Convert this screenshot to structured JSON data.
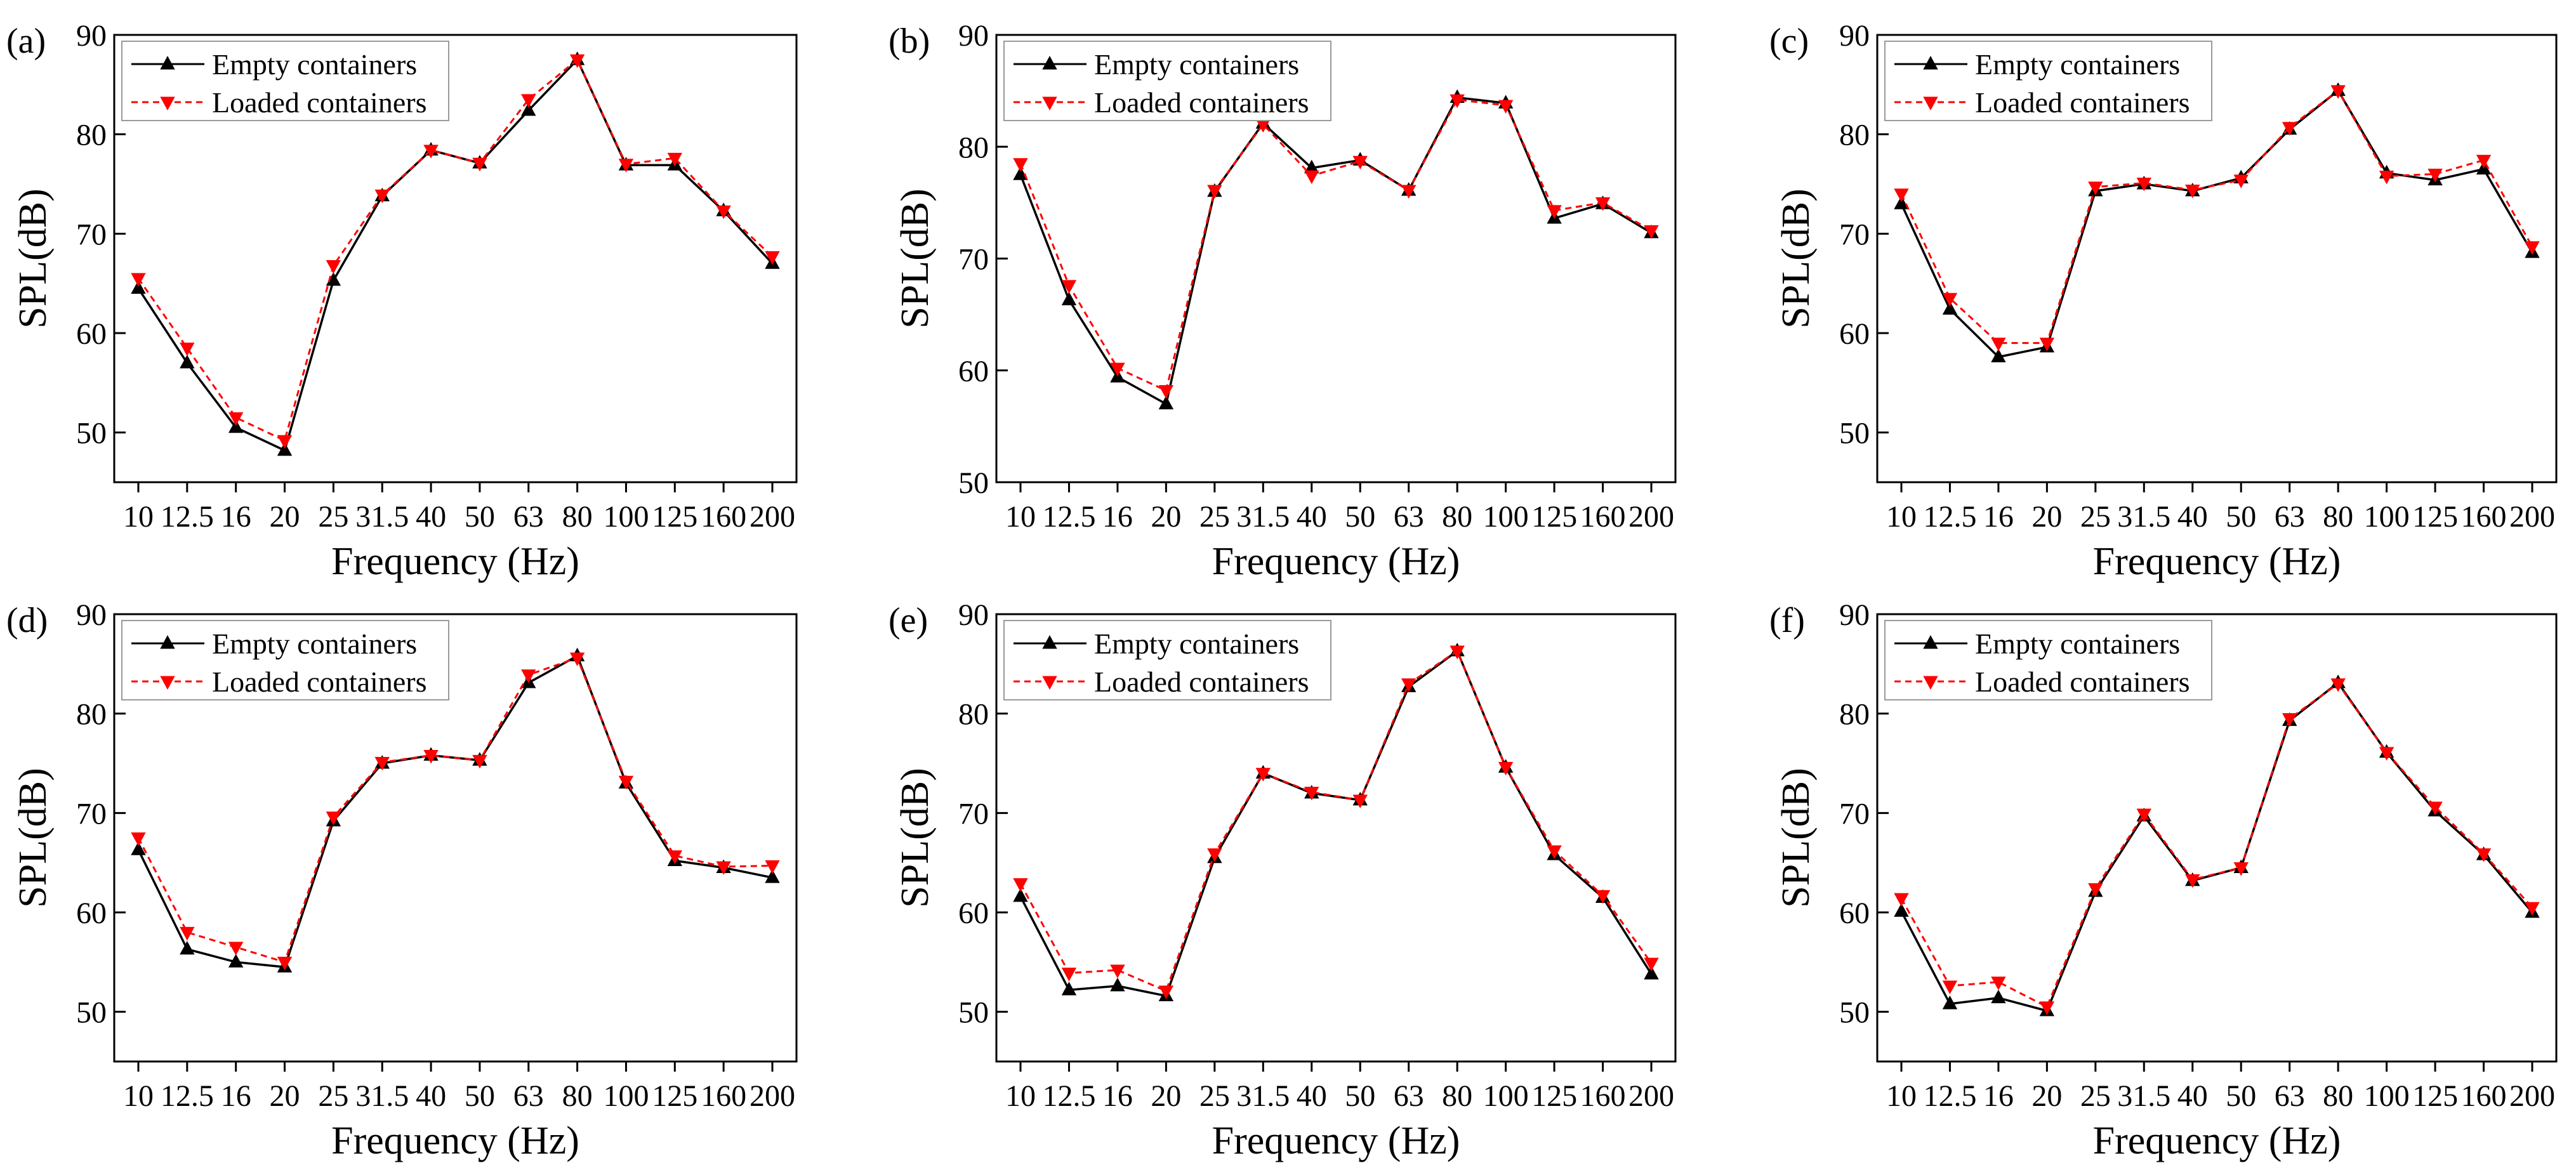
{
  "chart_data": [
    {
      "type": "line",
      "panel_label": "(a)",
      "xlabel": "Frequency (Hz)",
      "ylabel": "SPL(dB)",
      "categories": [
        "10",
        "12.5",
        "16",
        "20",
        "25",
        "31.5",
        "40",
        "50",
        "63",
        "80",
        "100",
        "125",
        "160",
        "200"
      ],
      "ylim": [
        45,
        90
      ],
      "yticks": [
        "50",
        "60",
        "70",
        "80",
        "90"
      ],
      "legend_position": "top-left",
      "series": [
        {
          "name": "Empty containers",
          "color": "#000000",
          "values": [
            64.5,
            57.0,
            50.5,
            48.2,
            65.3,
            73.8,
            78.4,
            77.1,
            82.4,
            87.5,
            76.9,
            76.9,
            72.3,
            67.0
          ]
        },
        {
          "name": "Loaded containers",
          "color": "#ff0000",
          "values": [
            65.5,
            58.5,
            51.5,
            49.2,
            66.8,
            73.9,
            78.4,
            77.1,
            83.5,
            87.5,
            77.0,
            77.6,
            72.3,
            67.7
          ]
        }
      ]
    },
    {
      "type": "line",
      "panel_label": "(b)",
      "xlabel": "Frequency (Hz)",
      "ylabel": "SPL(dB)",
      "categories": [
        "10",
        "12.5",
        "16",
        "20",
        "25",
        "31.5",
        "40",
        "50",
        "63",
        "80",
        "100",
        "125",
        "160",
        "200"
      ],
      "ylim": [
        50,
        90
      ],
      "yticks": [
        "50",
        "60",
        "70",
        "80",
        "90"
      ],
      "legend_position": "top-left",
      "series": [
        {
          "name": "Empty containers",
          "color": "#000000",
          "values": [
            77.5,
            66.3,
            59.4,
            57.0,
            76.0,
            82.1,
            78.1,
            78.8,
            76.1,
            84.4,
            83.9,
            73.6,
            74.9,
            72.3
          ]
        },
        {
          "name": "Loaded containers",
          "color": "#ff0000",
          "values": [
            78.5,
            67.6,
            60.2,
            58.2,
            76.1,
            82.0,
            77.4,
            78.7,
            76.1,
            84.2,
            83.7,
            74.3,
            75.0,
            72.5
          ]
        }
      ]
    },
    {
      "type": "line",
      "panel_label": "(c)",
      "xlabel": "Frequency (Hz)",
      "ylabel": "SPL(dB)",
      "categories": [
        "10",
        "12.5",
        "16",
        "20",
        "25",
        "31.5",
        "40",
        "50",
        "63",
        "80",
        "100",
        "125",
        "160",
        "200"
      ],
      "ylim": [
        45,
        90
      ],
      "yticks": [
        "50",
        "60",
        "70",
        "80",
        "90"
      ],
      "legend_position": "top-left",
      "series": [
        {
          "name": "Empty containers",
          "color": "#000000",
          "values": [
            73.0,
            62.4,
            57.6,
            58.6,
            74.3,
            75.0,
            74.3,
            75.6,
            80.5,
            84.4,
            76.1,
            75.4,
            76.5,
            68.1
          ]
        },
        {
          "name": "Loaded containers",
          "color": "#ff0000",
          "values": [
            74.0,
            63.5,
            59.0,
            59.0,
            74.7,
            75.1,
            74.4,
            75.4,
            80.7,
            84.4,
            75.8,
            76.0,
            77.4,
            68.7
          ]
        }
      ]
    },
    {
      "type": "line",
      "panel_label": "(d)",
      "xlabel": "Frequency (Hz)",
      "ylabel": "SPL(dB)",
      "categories": [
        "10",
        "12.5",
        "16",
        "20",
        "25",
        "31.5",
        "40",
        "50",
        "63",
        "80",
        "100",
        "125",
        "160",
        "200"
      ],
      "ylim": [
        45,
        90
      ],
      "yticks": [
        "50",
        "60",
        "70",
        "80",
        "90"
      ],
      "legend_position": "top-left",
      "series": [
        {
          "name": "Empty containers",
          "color": "#000000",
          "values": [
            66.3,
            56.3,
            55.0,
            54.5,
            69.2,
            75.0,
            75.8,
            75.3,
            83.1,
            85.8,
            73.0,
            65.2,
            64.5,
            63.5
          ]
        },
        {
          "name": "Loaded containers",
          "color": "#ff0000",
          "values": [
            67.5,
            58.0,
            56.5,
            55.0,
            69.6,
            75.1,
            75.8,
            75.3,
            83.9,
            85.6,
            73.2,
            65.7,
            64.6,
            64.7
          ]
        }
      ]
    },
    {
      "type": "line",
      "panel_label": "(e)",
      "xlabel": "Frequency (Hz)",
      "ylabel": "SPL(dB)",
      "categories": [
        "10",
        "12.5",
        "16",
        "20",
        "25",
        "31.5",
        "40",
        "50",
        "63",
        "80",
        "100",
        "125",
        "160",
        "200"
      ],
      "ylim": [
        45,
        90
      ],
      "yticks": [
        "50",
        "60",
        "70",
        "80",
        "90"
      ],
      "legend_position": "top-left",
      "series": [
        {
          "name": "Empty containers",
          "color": "#000000",
          "values": [
            61.6,
            52.2,
            52.6,
            51.6,
            65.5,
            74.0,
            72.0,
            71.3,
            82.7,
            86.3,
            74.6,
            65.8,
            61.5,
            53.8
          ]
        },
        {
          "name": "Loaded containers",
          "color": "#ff0000",
          "values": [
            62.9,
            53.9,
            54.2,
            52.1,
            65.9,
            74.0,
            72.1,
            71.3,
            83.0,
            86.3,
            74.6,
            66.2,
            61.7,
            54.9
          ]
        }
      ]
    },
    {
      "type": "line",
      "panel_label": "(f)",
      "xlabel": "Frequency (Hz)",
      "ylabel": "SPL(dB)",
      "categories": [
        "10",
        "12.5",
        "16",
        "20",
        "25",
        "31.5",
        "40",
        "50",
        "63",
        "80",
        "100",
        "125",
        "160",
        "200"
      ],
      "ylim": [
        45,
        90
      ],
      "yticks": [
        "50",
        "60",
        "70",
        "80",
        "90"
      ],
      "legend_position": "top-left",
      "series": [
        {
          "name": "Empty containers",
          "color": "#000000",
          "values": [
            60.1,
            50.8,
            51.4,
            50.1,
            62.1,
            69.7,
            63.2,
            64.5,
            79.3,
            83.1,
            76.1,
            70.2,
            65.8,
            60.0
          ]
        },
        {
          "name": "Loaded containers",
          "color": "#ff0000",
          "values": [
            61.4,
            52.6,
            53.0,
            50.5,
            62.4,
            69.9,
            63.3,
            64.5,
            79.5,
            83.0,
            76.1,
            70.6,
            65.9,
            60.5
          ]
        }
      ]
    }
  ]
}
